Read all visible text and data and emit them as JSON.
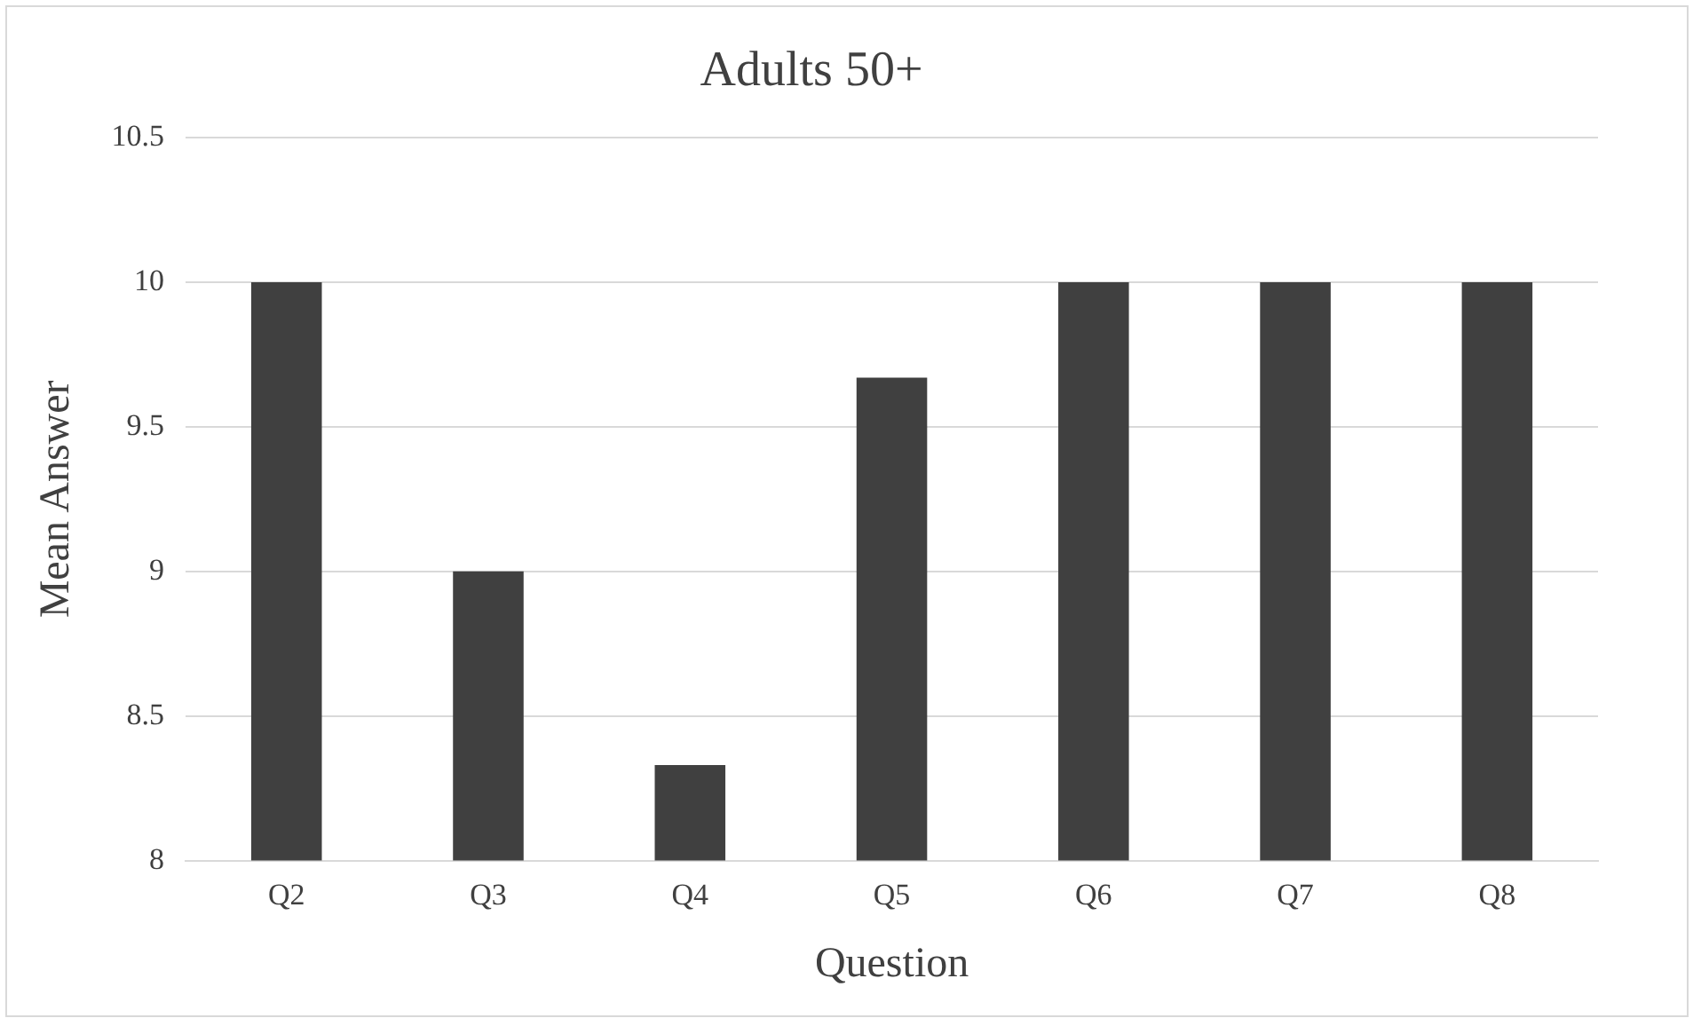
{
  "chart_data": {
    "type": "bar",
    "title": "Adults 50+",
    "xlabel": "Question",
    "ylabel": "Mean Answer",
    "categories": [
      "Q2",
      "Q3",
      "Q4",
      "Q5",
      "Q6",
      "Q7",
      "Q8"
    ],
    "values": [
      10,
      9,
      8.33,
      9.67,
      10,
      10,
      10
    ],
    "color": "#404040",
    "ylim": [
      8,
      10.5
    ],
    "yticks": [
      8,
      8.5,
      9,
      9.5,
      10,
      10.5
    ],
    "grid": "y",
    "legend": false
  }
}
